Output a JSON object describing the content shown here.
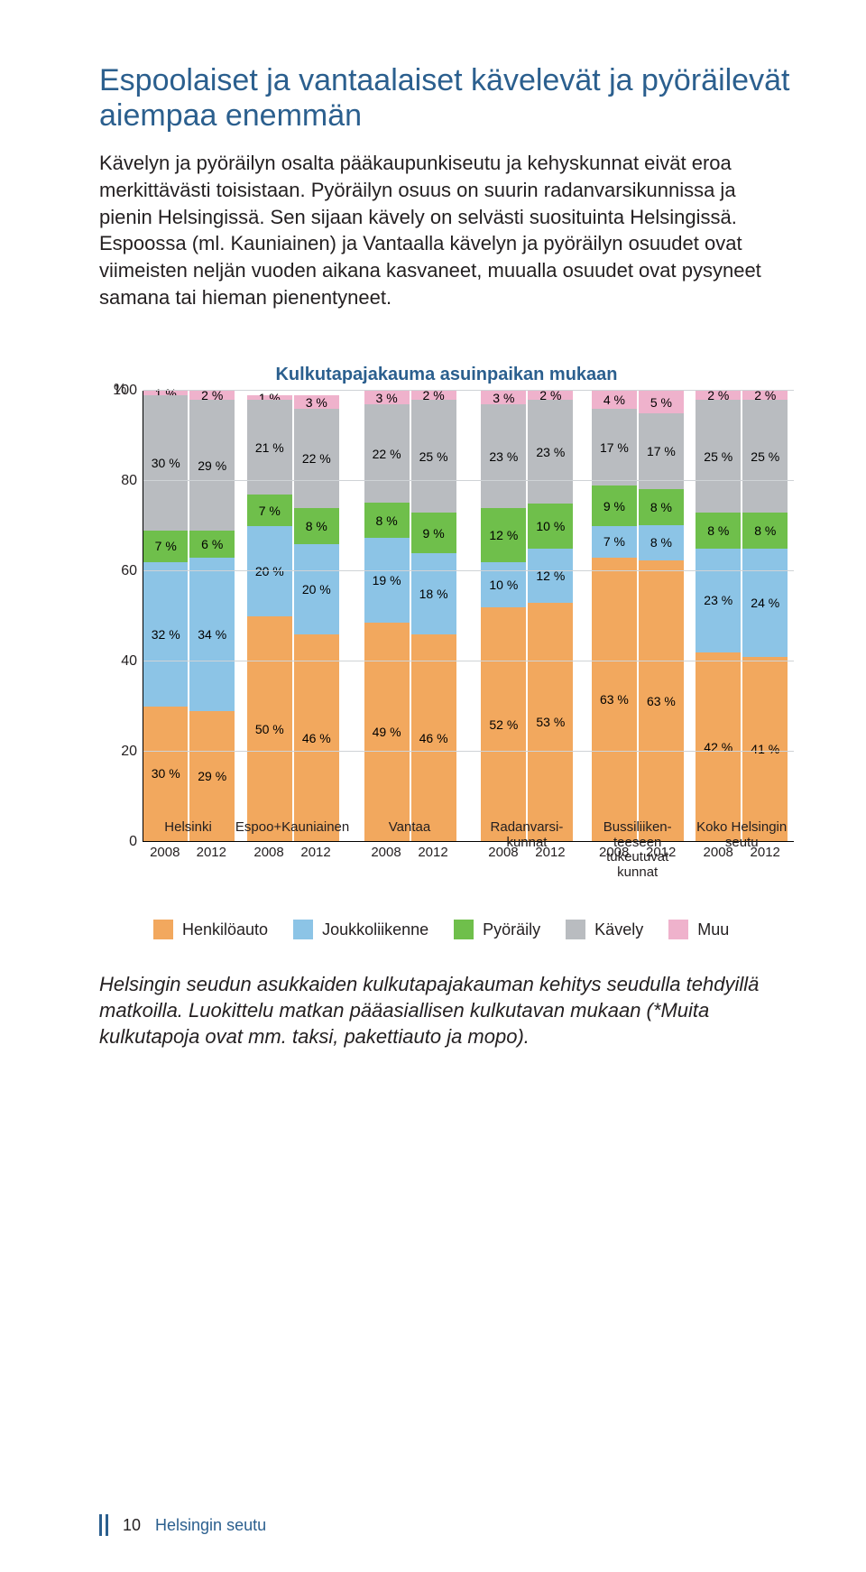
{
  "heading_color": "#2b5f8e",
  "heading": "Espoolaiset ja vantaalaiset kävelevät ja pyöräilevät aiempaa enemmän",
  "body": "Kävelyn ja pyöräilyn osalta pääkaupunkiseutu ja kehyskunnat eivät eroa merkittävästi toisistaan. Pyöräilyn osuus on suurin radanvarsikunnissa ja pienin Helsingissä. Sen sijaan kävely on selvästi suosituinta Helsingissä. Espoossa (ml. Kauniainen) ja Vantaalla kävelyn ja pyöräilyn osuudet ovat viimeisten neljän vuoden aikana kasvaneet, muualla osuudet ovat pysyneet samana tai hieman pienentyneet.",
  "chart": {
    "title": "Kulkutapajakauma asuinpaikan mukaan",
    "title_color": "#2b5f8e",
    "type": "stacked-bar",
    "y_unit": "%",
    "ylim": [
      0,
      100
    ],
    "ytick_step": 20,
    "grid_color": "#cfd3d6",
    "series_order": [
      "henkiloauto",
      "joukkoliikenne",
      "pyoraily",
      "kavely",
      "muu"
    ],
    "series": {
      "henkiloauto": {
        "label": "Henkilöauto",
        "color": "#f2a85e"
      },
      "joukkoliikenne": {
        "label": "Joukkoliikenne",
        "color": "#8cc4e6"
      },
      "pyoraily": {
        "label": "Pyöräily",
        "color": "#6fbf4b"
      },
      "kavely": {
        "label": "Kävely",
        "color": "#b9bcc0"
      },
      "muu": {
        "label": "Muu",
        "color": "#efb2cc"
      }
    },
    "years": [
      "2008",
      "2012"
    ],
    "groups": [
      {
        "label": "Helsinki",
        "bars": [
          {
            "year": "2008",
            "values": {
              "henkiloauto": 30,
              "joukkoliikenne": 32,
              "pyoraily": 7,
              "kavely": 30,
              "muu": 1
            }
          },
          {
            "year": "2012",
            "values": {
              "henkiloauto": 29,
              "joukkoliikenne": 34,
              "pyoraily": 6,
              "kavely": 29,
              "muu": 2
            }
          }
        ]
      },
      {
        "label": "Espoo+Kauniainen",
        "bars": [
          {
            "year": "2008",
            "values": {
              "henkiloauto": 50,
              "joukkoliikenne": 20,
              "pyoraily": 7,
              "kavely": 21,
              "muu": 1
            }
          },
          {
            "year": "2012",
            "values": {
              "henkiloauto": 46,
              "joukkoliikenne": 20,
              "pyoraily": 8,
              "kavely": 22,
              "muu": 3
            }
          }
        ]
      },
      {
        "label": "Vantaa",
        "bars": [
          {
            "year": "2008",
            "values": {
              "henkiloauto": 49,
              "joukkoliikenne": 19,
              "pyoraily": 8,
              "kavely": 22,
              "muu": 3
            }
          },
          {
            "year": "2012",
            "values": {
              "henkiloauto": 46,
              "joukkoliikenne": 18,
              "pyoraily": 9,
              "kavely": 25,
              "muu": 2
            }
          }
        ]
      },
      {
        "label": "Radanvarsi-\nkunnat",
        "bars": [
          {
            "year": "2008",
            "values": {
              "henkiloauto": 52,
              "joukkoliikenne": 10,
              "pyoraily": 12,
              "kavely": 23,
              "muu": 3
            }
          },
          {
            "year": "2012",
            "values": {
              "henkiloauto": 53,
              "joukkoliikenne": 12,
              "pyoraily": 10,
              "kavely": 23,
              "muu": 2
            }
          }
        ]
      },
      {
        "label": "Bussiliiken-\nteeseen tukeutuvat\nkunnat",
        "bars": [
          {
            "year": "2008",
            "values": {
              "henkiloauto": 63,
              "joukkoliikenne": 7,
              "pyoraily": 9,
              "kavely": 17,
              "muu": 4
            }
          },
          {
            "year": "2012",
            "values": {
              "henkiloauto": 63,
              "joukkoliikenne": 8,
              "pyoraily": 8,
              "kavely": 17,
              "muu": 5
            }
          }
        ]
      },
      {
        "label": "Koko Helsingin\nseutu",
        "bars": [
          {
            "year": "2008",
            "values": {
              "henkiloauto": 42,
              "joukkoliikenne": 23,
              "pyoraily": 8,
              "kavely": 25,
              "muu": 2
            }
          },
          {
            "year": "2012",
            "values": {
              "henkiloauto": 41,
              "joukkoliikenne": 24,
              "pyoraily": 8,
              "kavely": 25,
              "muu": 2
            }
          }
        ]
      }
    ]
  },
  "caption": "Helsingin seudun asukkaiden kulkutapajakauman kehitys seudulla tehdyillä matkoilla. Luokittelu matkan pääasiallisen kulkutavan mukaan (*Muita kulkutapoja ovat mm. taksi, pakettiauto ja mopo).",
  "footer": {
    "page": "10",
    "doc": "Helsingin seutu"
  }
}
